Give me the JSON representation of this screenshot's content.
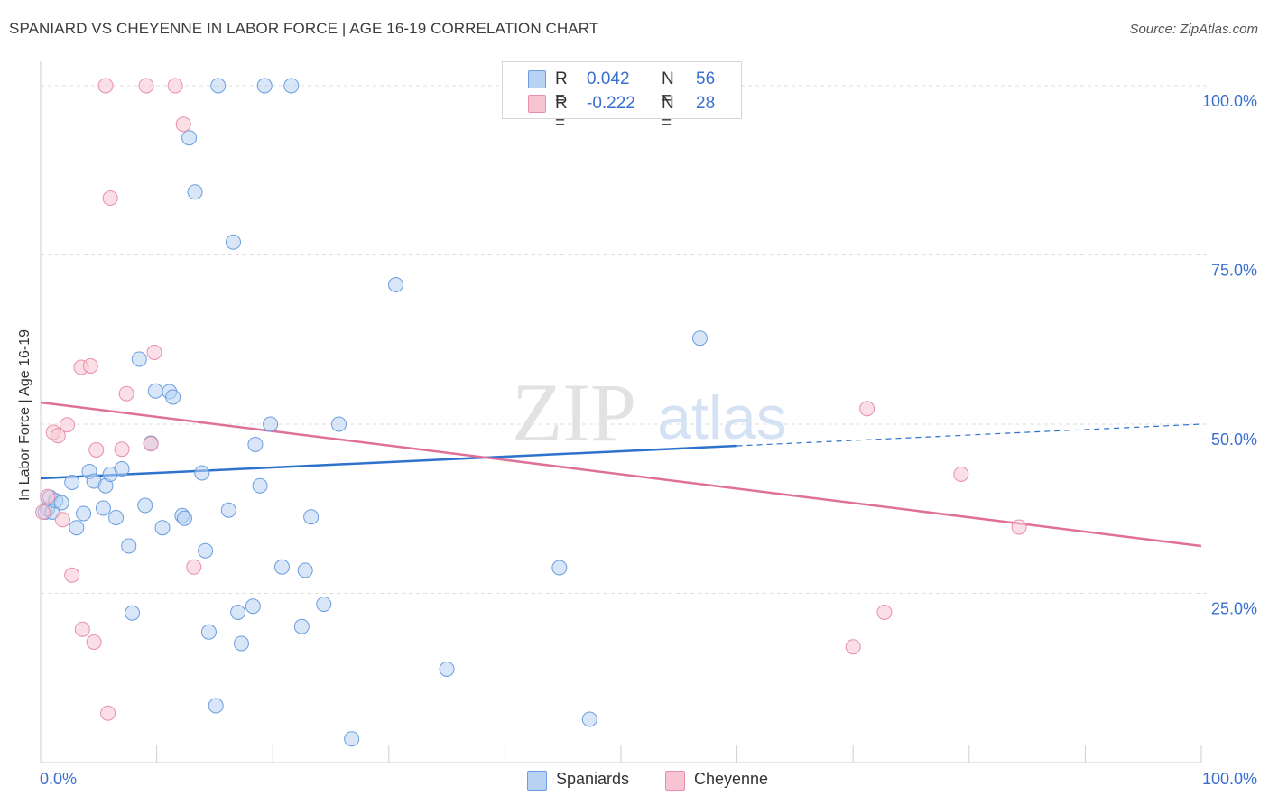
{
  "header": {
    "title": "SPANIARD VS CHEYENNE IN LABOR FORCE | AGE 16-19 CORRELATION CHART",
    "source": "Source: ZipAtlas.com"
  },
  "watermark": {
    "zip": "ZIP",
    "atlas": "atlas"
  },
  "colors": {
    "spaniards_fill": "#b8d2f3",
    "spaniards_stroke": "#6a9ee0",
    "spaniards_line": "#2f72cc",
    "cheyenne_fill": "#f8c4d3",
    "cheyenne_stroke": "#e890ab",
    "cheyenne_line": "#e0709a",
    "tick_label": "#3a6fd0",
    "grid": "#dddddd"
  },
  "stats": [
    {
      "r_label": "R =",
      "r_value": "0.042",
      "n_label": "N =",
      "n_value": "56"
    },
    {
      "r_label": "R =",
      "r_value": "-0.222",
      "n_label": "N =",
      "n_value": "28"
    }
  ],
  "chart_data": {
    "type": "scatter",
    "title": "SPANIARD VS CHEYENNE IN LABOR FORCE | AGE 16-19 CORRELATION CHART",
    "xlabel": "",
    "ylabel": "In Labor Force | Age 16-19",
    "xlim": [
      0,
      100
    ],
    "ylim": [
      0,
      102
    ],
    "x_tick_labels": [
      "0.0%",
      "100.0%"
    ],
    "y_ticks": [
      25,
      50,
      75,
      100
    ],
    "y_tick_labels": [
      "25.0%",
      "50.0%",
      "75.0%",
      "100.0%"
    ],
    "grid": true,
    "legend": {
      "position": "bottom-center",
      "entries": [
        "Spaniards",
        "Cheyenne"
      ]
    },
    "series": [
      {
        "name": "Spaniards",
        "points": [
          [
            0.4,
            37.0
          ],
          [
            0.6,
            37.5
          ],
          [
            0.8,
            39.2
          ],
          [
            1.0,
            37.0
          ],
          [
            1.3,
            38.7
          ],
          [
            1.8,
            38.4
          ],
          [
            2.7,
            41.4
          ],
          [
            3.1,
            34.7
          ],
          [
            3.7,
            36.8
          ],
          [
            4.2,
            43.0
          ],
          [
            4.6,
            41.6
          ],
          [
            5.4,
            37.6
          ],
          [
            5.6,
            40.9
          ],
          [
            6.0,
            42.6
          ],
          [
            6.5,
            36.2
          ],
          [
            7.0,
            43.4
          ],
          [
            7.6,
            32.0
          ],
          [
            7.9,
            22.1
          ],
          [
            8.5,
            59.6
          ],
          [
            9.0,
            38.0
          ],
          [
            9.5,
            47.2
          ],
          [
            9.9,
            54.9
          ],
          [
            10.5,
            34.7
          ],
          [
            11.1,
            54.8
          ],
          [
            11.4,
            54.0
          ],
          [
            12.2,
            36.5
          ],
          [
            12.4,
            36.1
          ],
          [
            12.8,
            92.3
          ],
          [
            13.3,
            84.3
          ],
          [
            13.9,
            42.8
          ],
          [
            14.2,
            31.3
          ],
          [
            14.5,
            19.3
          ],
          [
            15.1,
            8.4
          ],
          [
            15.3,
            100.0
          ],
          [
            16.2,
            37.3
          ],
          [
            16.6,
            76.9
          ],
          [
            17.0,
            22.2
          ],
          [
            17.3,
            17.6
          ],
          [
            18.3,
            23.1
          ],
          [
            18.5,
            47.0
          ],
          [
            18.9,
            40.9
          ],
          [
            19.3,
            100.0
          ],
          [
            19.8,
            50.0
          ],
          [
            20.8,
            28.9
          ],
          [
            21.6,
            100.0
          ],
          [
            22.5,
            20.1
          ],
          [
            22.8,
            28.4
          ],
          [
            23.3,
            36.3
          ],
          [
            24.4,
            23.4
          ],
          [
            25.7,
            50.0
          ],
          [
            26.8,
            3.5
          ],
          [
            30.6,
            70.6
          ],
          [
            35.0,
            13.8
          ],
          [
            44.7,
            28.8
          ],
          [
            47.3,
            6.4
          ],
          [
            56.8,
            62.7
          ]
        ],
        "trend": {
          "x": [
            0,
            60
          ],
          "y": [
            42.0,
            46.8
          ],
          "dashed_to": [
            100,
            50.0
          ]
        }
      },
      {
        "name": "Cheyenne",
        "points": [
          [
            0.2,
            37.0
          ],
          [
            0.6,
            39.3
          ],
          [
            1.1,
            48.8
          ],
          [
            1.5,
            48.3
          ],
          [
            1.9,
            35.9
          ],
          [
            2.3,
            49.9
          ],
          [
            2.7,
            27.7
          ],
          [
            3.5,
            58.4
          ],
          [
            3.6,
            19.7
          ],
          [
            4.3,
            58.6
          ],
          [
            4.6,
            17.8
          ],
          [
            4.8,
            46.2
          ],
          [
            5.6,
            100.0
          ],
          [
            5.8,
            7.3
          ],
          [
            6.0,
            83.4
          ],
          [
            7.0,
            46.3
          ],
          [
            7.4,
            54.5
          ],
          [
            9.1,
            100.0
          ],
          [
            9.5,
            47.1
          ],
          [
            9.8,
            60.6
          ],
          [
            11.6,
            100.0
          ],
          [
            12.3,
            94.3
          ],
          [
            13.2,
            28.9
          ],
          [
            70.0,
            17.1
          ],
          [
            71.2,
            52.3
          ],
          [
            72.7,
            22.2
          ],
          [
            79.3,
            42.6
          ],
          [
            84.3,
            34.8
          ]
        ],
        "trend": {
          "x": [
            0,
            100
          ],
          "y": [
            53.2,
            32.0
          ]
        }
      }
    ]
  }
}
